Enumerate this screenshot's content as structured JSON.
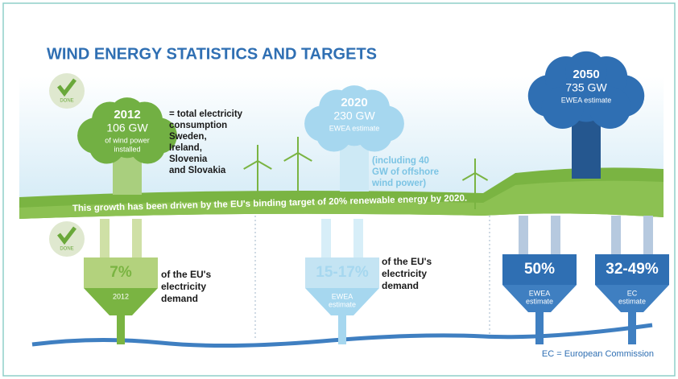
{
  "title": "WIND ENERGY STATISTICS AND TARGETS",
  "badges": [
    "DONE",
    "DONE"
  ],
  "trees": [
    {
      "year": "2012",
      "capacity": "106 GW",
      "note": [
        "of wind power",
        "installed"
      ]
    },
    {
      "year": "2020",
      "capacity": "230 GW",
      "note": [
        "EWEA estimate"
      ]
    },
    {
      "year": "2050",
      "capacity": "735 GW",
      "note": [
        "EWEA estimate"
      ]
    }
  ],
  "side_notes": [
    [
      "= total electricity",
      "consumption",
      "Sweden,",
      "Ireland,",
      "Slovenia",
      "and Slovakia"
    ],
    [
      "(including 40",
      "GW of offshore",
      "wind power)"
    ]
  ],
  "banner": "This growth has been driven by the EU's binding target of 20% renewable energy by 2020.",
  "plugs": [
    {
      "share": "7%",
      "caption": [
        "2012"
      ]
    },
    {
      "share": "15-17%",
      "caption": [
        "EWEA",
        "estimate"
      ]
    },
    {
      "share": "50%",
      "caption": [
        "EWEA",
        "estimate"
      ]
    },
    {
      "share": "32-49%",
      "caption": [
        "EC",
        "estimate"
      ]
    }
  ],
  "demand_notes": [
    [
      "of the EU's",
      "electricity",
      "demand"
    ],
    [
      "of the EU's",
      "electricity",
      "demand"
    ]
  ],
  "footnote": "EC = European Commission"
}
